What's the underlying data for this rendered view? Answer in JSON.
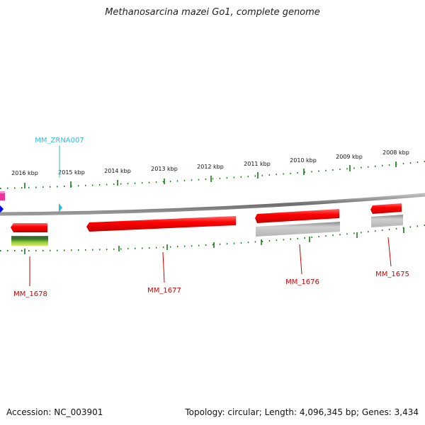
{
  "title": "Methanosarcina mazei Go1, complete genome",
  "scale_labels": [
    "2016 kbp",
    "2015 kbp",
    "2014 kbp",
    "2013 kbp",
    "2012 kbp",
    "2011 kbp",
    "2010 kbp",
    "2009 kbp",
    "2008 kbp"
  ],
  "rna_label": "MM_ZRNA007",
  "gene_labels": [
    "MM_1678",
    "MM_1677",
    "MM_1676",
    "MM_1675"
  ],
  "accession": "Accession: NC_003901",
  "summary": "Topology: circular; Length: 4,096,345 bp; Genes: 3,434",
  "colors": {
    "gene": "#ff0000",
    "gene_label": "#cc0000",
    "rna": "#33bbdd",
    "backbone": "#888888",
    "tick": "#1a7a1a",
    "pseudo": "#bbbbbb",
    "blue_feature": "#0000ff",
    "magenta_feature": "#ee3399"
  }
}
